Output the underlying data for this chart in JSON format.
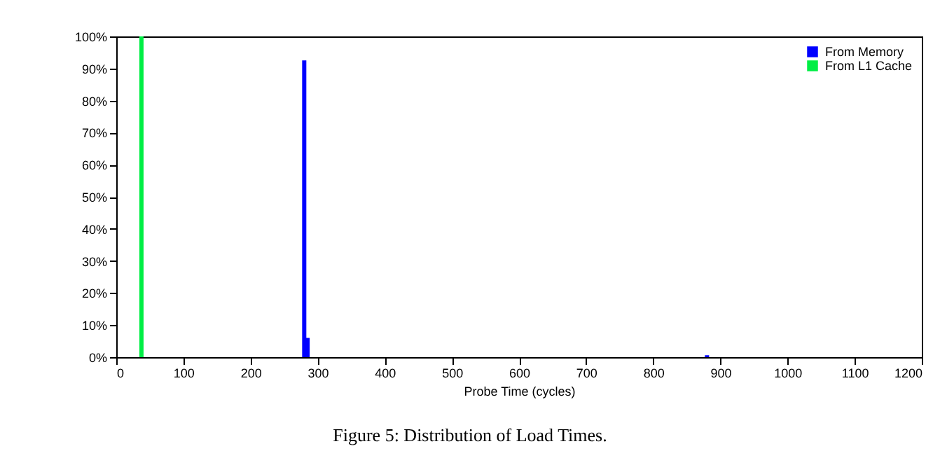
{
  "chart_data": {
    "type": "bar",
    "xlabel": "Probe Time (cycles)",
    "annotations": [
      "Figure 5: Distribution of Load Times."
    ],
    "series": [
      {
        "name": "From Memory",
        "color": "#0000ff",
        "x": [
          280,
          285,
          880
        ],
        "values": [
          92.5,
          6,
          0.6
        ]
      },
      {
        "name": "From L1 Cache",
        "color": "#00ee44",
        "x": [
          37.5
        ],
        "values": [
          100
        ]
      }
    ],
    "xlim": [
      0,
      1200
    ],
    "xticks": [
      0,
      100,
      200,
      300,
      400,
      500,
      600,
      700,
      800,
      900,
      1000,
      1100,
      1200
    ],
    "ylim": [
      0,
      100
    ],
    "yticks": [
      {
        "value": 0,
        "label": "0%"
      },
      {
        "value": 10,
        "label": "10%"
      },
      {
        "value": 20,
        "label": "20%"
      },
      {
        "value": 30,
        "label": "30%"
      },
      {
        "value": 40,
        "label": "40%"
      },
      {
        "value": 50,
        "label": "50%"
      },
      {
        "value": 60,
        "label": "60%"
      },
      {
        "value": 70,
        "label": "70%"
      },
      {
        "value": 80,
        "label": "80%"
      },
      {
        "value": 90,
        "label": "90%"
      },
      {
        "value": 100,
        "label": "100%"
      }
    ],
    "grid": false,
    "legend": "top right"
  }
}
